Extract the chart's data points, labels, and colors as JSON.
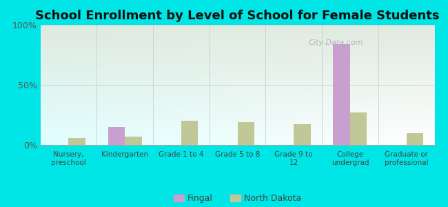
{
  "title": "School Enrollment by Level of School for Female Students",
  "categories": [
    "Nursery,\npreschool",
    "Kindergarten",
    "Grade 1 to 4",
    "Grade 5 to 8",
    "Grade 9 to\n12",
    "College\nundergrad",
    "Graduate or\nprofessional"
  ],
  "fingal": [
    0,
    15,
    0,
    0,
    0,
    84,
    0
  ],
  "north_dakota": [
    6,
    7,
    20,
    19,
    17,
    27,
    10
  ],
  "fingal_color": "#c8a0d0",
  "north_dakota_color": "#c0c898",
  "background_outer": "#00e5e5",
  "ylim": [
    0,
    100
  ],
  "yticks": [
    0,
    50,
    100
  ],
  "ytick_labels": [
    "0%",
    "50%",
    "100%"
  ],
  "title_fontsize": 13,
  "bar_width": 0.3,
  "legend_labels": [
    "Fingal",
    "North Dakota"
  ],
  "watermark": "City-Data.com"
}
